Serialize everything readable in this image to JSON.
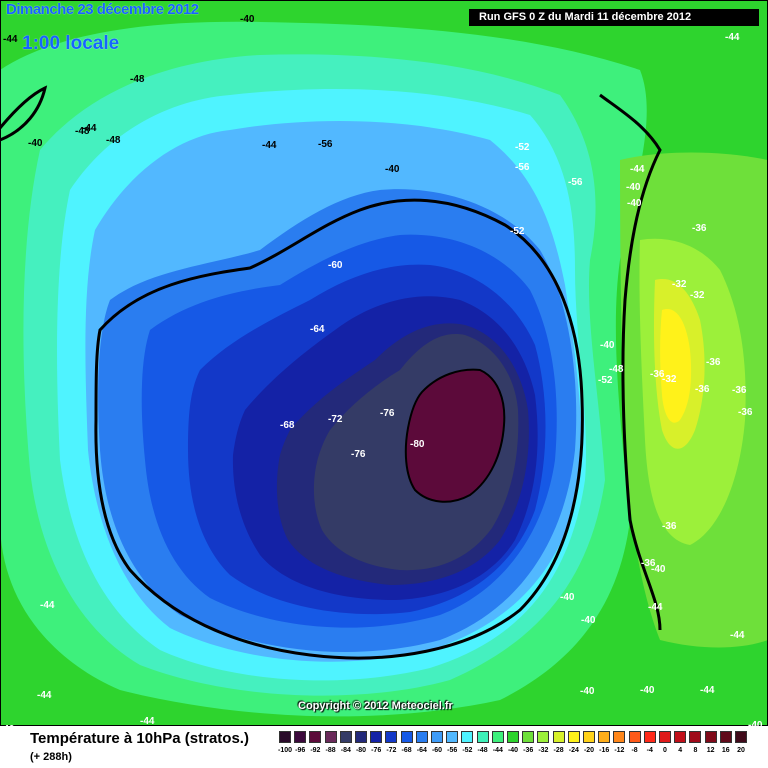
{
  "header": {
    "date": "Dimanche 23 décembre 2012",
    "time": "1:00 locale",
    "run": "Run GFS 0 Z du Mardi 11 décembre 2012"
  },
  "copyright": "Copyright © 2012 Meteociel.fr",
  "footer": {
    "title": "Température à 10hPa (stratos.)",
    "subtitle": "(+ 288h)"
  },
  "colors": {
    "background_green": "#2ed42e",
    "band_48": "#3ef07c",
    "band_52": "#4ff3ff",
    "band_56": "#52b8ff",
    "band_60": "#2a7df0",
    "band_64": "#1659e6",
    "band_68": "#1338c8",
    "band_72": "#1422a6",
    "band_76": "#23297a",
    "band_80": "#343b66",
    "core": "#5c0a3a",
    "warm_38": "#9cf03a",
    "warm_34": "#d8f02a",
    "warm_30": "#fff21a"
  },
  "contour_labels": [
    {
      "text": "-44",
      "color": "#000000"
    },
    {
      "text": "-48",
      "color": "#000000"
    },
    {
      "text": "-40",
      "color": "#000000"
    },
    {
      "text": "-44",
      "color": "#000000"
    },
    {
      "text": "-48",
      "color": "#000000"
    },
    {
      "text": "-48",
      "color": "#000000"
    },
    {
      "text": "-40",
      "color": "#000000"
    },
    {
      "text": "-44",
      "color": "#000000"
    },
    {
      "text": "-40",
      "color": "#000000"
    },
    {
      "text": "-56",
      "color": "#000000"
    },
    {
      "text": "-52",
      "color": "#ffffff"
    },
    {
      "text": "-56",
      "color": "#ffffff"
    },
    {
      "text": "-52",
      "color": "#ffffff"
    },
    {
      "text": "-56",
      "color": "#ffffff"
    },
    {
      "text": "-44",
      "color": "#ffffff"
    },
    {
      "text": "-40",
      "color": "#ffffff"
    },
    {
      "text": "-40",
      "color": "#ffffff"
    },
    {
      "text": "-36",
      "color": "#ffffff"
    },
    {
      "text": "-32",
      "color": "#ffffff"
    },
    {
      "text": "-32",
      "color": "#ffffff"
    },
    {
      "text": "-60",
      "color": "#ffffff"
    },
    {
      "text": "-64",
      "color": "#ffffff"
    },
    {
      "text": "-68",
      "color": "#ffffff"
    },
    {
      "text": "-72",
      "color": "#ffffff"
    },
    {
      "text": "-76",
      "color": "#ffffff"
    },
    {
      "text": "-76",
      "color": "#ffffff"
    },
    {
      "text": "-80",
      "color": "#ffffff"
    },
    {
      "text": "-40",
      "color": "#ffffff"
    },
    {
      "text": "-48",
      "color": "#ffffff"
    },
    {
      "text": "-52",
      "color": "#ffffff"
    },
    {
      "text": "-36",
      "color": "#ffffff"
    },
    {
      "text": "-32",
      "color": "#ffffff"
    },
    {
      "text": "-36",
      "color": "#ffffff"
    },
    {
      "text": "-36",
      "color": "#ffffff"
    },
    {
      "text": "-36",
      "color": "#ffffff"
    },
    {
      "text": "-36",
      "color": "#ffffff"
    },
    {
      "text": "-36",
      "color": "#ffffff"
    },
    {
      "text": "-36",
      "color": "#ffffff"
    },
    {
      "text": "-40",
      "color": "#ffffff"
    },
    {
      "text": "-40",
      "color": "#ffffff"
    },
    {
      "text": "-40",
      "color": "#ffffff"
    },
    {
      "text": "-44",
      "color": "#ffffff"
    },
    {
      "text": "-44",
      "color": "#ffffff"
    },
    {
      "text": "-44",
      "color": "#ffffff"
    },
    {
      "text": "-44",
      "color": "#ffffff"
    },
    {
      "text": "-44",
      "color": "#ffffff"
    },
    {
      "text": "-40",
      "color": "#ffffff"
    },
    {
      "text": "-40",
      "color": "#ffffff"
    },
    {
      "text": "-44",
      "color": "#ffffff"
    },
    {
      "text": "-40",
      "color": "#ffffff"
    },
    {
      "text": "-44",
      "color": "#ffffff"
    },
    {
      "text": "-40",
      "color": "#ffffff"
    }
  ],
  "scale": [
    {
      "label": "-100",
      "color": "#2a0a2a"
    },
    {
      "label": "-96",
      "color": "#3c0a3c"
    },
    {
      "label": "-92",
      "color": "#5c0a3a"
    },
    {
      "label": "-88",
      "color": "#6a2a5a"
    },
    {
      "label": "-84",
      "color": "#343b66"
    },
    {
      "label": "-80",
      "color": "#23297a"
    },
    {
      "label": "-76",
      "color": "#1422a6"
    },
    {
      "label": "-72",
      "color": "#1338c8"
    },
    {
      "label": "-68",
      "color": "#1659e6"
    },
    {
      "label": "-64",
      "color": "#2a7df0"
    },
    {
      "label": "-60",
      "color": "#3f9cf8"
    },
    {
      "label": "-56",
      "color": "#52b8ff"
    },
    {
      "label": "-52",
      "color": "#4ff3ff"
    },
    {
      "label": "-48",
      "color": "#3ef0b8"
    },
    {
      "label": "-44",
      "color": "#3ef07c"
    },
    {
      "label": "-40",
      "color": "#2ed42e"
    },
    {
      "label": "-36",
      "color": "#6ee03a"
    },
    {
      "label": "-32",
      "color": "#9cf03a"
    },
    {
      "label": "-28",
      "color": "#d8f02a"
    },
    {
      "label": "-24",
      "color": "#fff21a"
    },
    {
      "label": "-20",
      "color": "#ffd21a"
    },
    {
      "label": "-16",
      "color": "#ffae1a"
    },
    {
      "label": "-12",
      "color": "#ff861a"
    },
    {
      "label": "-8",
      "color": "#ff5a1a"
    },
    {
      "label": "-4",
      "color": "#ff2a1a"
    },
    {
      "label": "0",
      "color": "#e01a1a"
    },
    {
      "label": "4",
      "color": "#c0101a"
    },
    {
      "label": "8",
      "color": "#a00a1a"
    },
    {
      "label": "12",
      "color": "#800a1a"
    },
    {
      "label": "16",
      "color": "#600a1a"
    },
    {
      "label": "20",
      "color": "#400a1a"
    }
  ]
}
